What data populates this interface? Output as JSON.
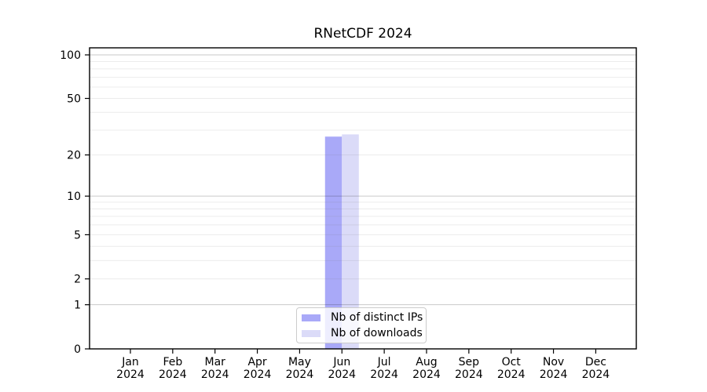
{
  "chart_data": {
    "type": "bar",
    "title": "RNetCDF 2024",
    "categories": [
      "Jan",
      "Feb",
      "Mar",
      "Apr",
      "May",
      "Jun",
      "Jul",
      "Aug",
      "Sep",
      "Oct",
      "Nov",
      "Dec"
    ],
    "category_year": "2024",
    "x_tick_labels": [
      "Jan 2024",
      "Feb 2024",
      "Mar 2024",
      "Apr 2024",
      "May 2024",
      "Jun 2024",
      "Jul 2024",
      "Aug 2024",
      "Sep 2024",
      "Oct 2024",
      "Nov 2024",
      "Dec 2024"
    ],
    "series": [
      {
        "name": "Nb of distinct IPs",
        "color": "#a9a9f8",
        "values": [
          0,
          0,
          0,
          0,
          0,
          27,
          0,
          0,
          0,
          0,
          0,
          0
        ]
      },
      {
        "name": "Nb of downloads",
        "color": "#dbdbf8",
        "values": [
          0,
          0,
          0,
          0,
          0,
          28,
          0,
          0,
          0,
          0,
          0,
          0
        ]
      }
    ],
    "yscale": "log1p",
    "ylim": [
      0,
      112
    ],
    "y_ticks": [
      0,
      1,
      2,
      5,
      10,
      20,
      50,
      100
    ],
    "y_minor_gridlines": [
      2,
      3,
      4,
      5,
      6,
      7,
      8,
      9,
      20,
      30,
      40,
      50,
      60,
      70,
      80,
      90
    ],
    "y_major_gridlines": [
      1,
      10,
      100
    ],
    "xlabel": "",
    "ylabel": "",
    "grid": true,
    "legend_position": "bottom-center",
    "colors": {
      "background": "#ffffff",
      "axis_line": "#000000",
      "tick_text": "#000000",
      "grid_major": "rgba(0,0,0,0.21)",
      "grid_minor": "rgba(120,120,120,0.14)"
    }
  }
}
